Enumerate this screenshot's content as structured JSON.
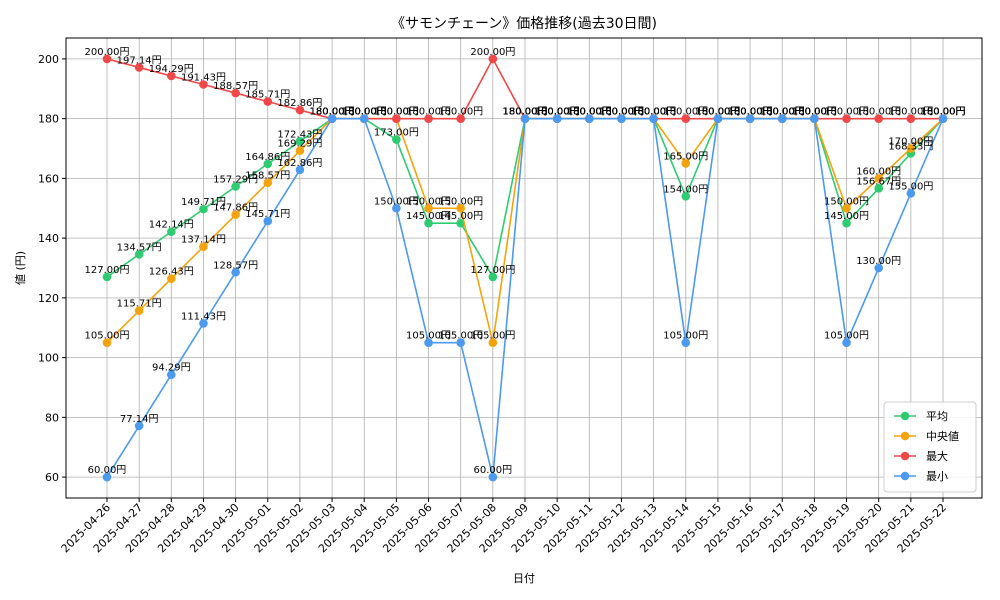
{
  "chart_data": {
    "type": "line",
    "title": "《サモンチェーン》価格推移(過去30日間)",
    "xlabel": "日付",
    "ylabel": "値 (円)",
    "ylim": [
      53,
      207
    ],
    "yticks": [
      60,
      80,
      100,
      120,
      140,
      160,
      180,
      200
    ],
    "grid": true,
    "legend_position": "bottom-right",
    "unit_suffix": "円",
    "categories": [
      "2025-04-26",
      "2025-04-27",
      "2025-04-28",
      "2025-04-29",
      "2025-04-30",
      "2025-05-01",
      "2025-05-02",
      "2025-05-03",
      "2025-05-04",
      "2025-05-05",
      "2025-05-06",
      "2025-05-07",
      "2025-05-08",
      "2025-05-09",
      "2025-05-10",
      "2025-05-11",
      "2025-05-12",
      "2025-05-13",
      "2025-05-14",
      "2025-05-15",
      "2025-05-16",
      "2025-05-17",
      "2025-05-18",
      "2025-05-19",
      "2025-05-20",
      "2025-05-21",
      "2025-05-22"
    ],
    "series": [
      {
        "name": "平均",
        "color": "#2ecc71",
        "values": [
          127.0,
          134.57,
          142.14,
          149.71,
          157.29,
          164.86,
          172.43,
          180.0,
          180.0,
          173.0,
          145.0,
          145.0,
          127.0,
          180.0,
          180.0,
          180.0,
          180.0,
          180.0,
          154.0,
          180.0,
          180.0,
          180.0,
          180.0,
          145.0,
          156.67,
          168.33,
          180.0
        ]
      },
      {
        "name": "中央値",
        "color": "#f5a30a",
        "values": [
          105.0,
          115.71,
          126.43,
          137.14,
          147.86,
          158.57,
          169.29,
          180.0,
          180.0,
          180.0,
          150.0,
          150.0,
          105.0,
          180.0,
          180.0,
          180.0,
          180.0,
          180.0,
          165.0,
          180.0,
          180.0,
          180.0,
          180.0,
          150.0,
          160.0,
          170.0,
          180.0
        ]
      },
      {
        "name": "最大",
        "color": "#f04848",
        "values": [
          200.0,
          197.14,
          194.29,
          191.43,
          188.57,
          185.71,
          182.86,
          180.0,
          180.0,
          180.0,
          180.0,
          180.0,
          200.0,
          180.0,
          180.0,
          180.0,
          180.0,
          180.0,
          180.0,
          180.0,
          180.0,
          180.0,
          180.0,
          180.0,
          180.0,
          180.0,
          180.0
        ]
      },
      {
        "name": "最小",
        "color": "#4b9af0",
        "values": [
          60.0,
          77.14,
          94.29,
          111.43,
          128.57,
          145.71,
          162.86,
          180.0,
          180.0,
          150.0,
          105.0,
          105.0,
          60.0,
          180.0,
          180.0,
          180.0,
          180.0,
          180.0,
          105.0,
          180.0,
          180.0,
          180.0,
          180.0,
          105.0,
          130.0,
          155.0,
          180.0
        ]
      }
    ]
  }
}
